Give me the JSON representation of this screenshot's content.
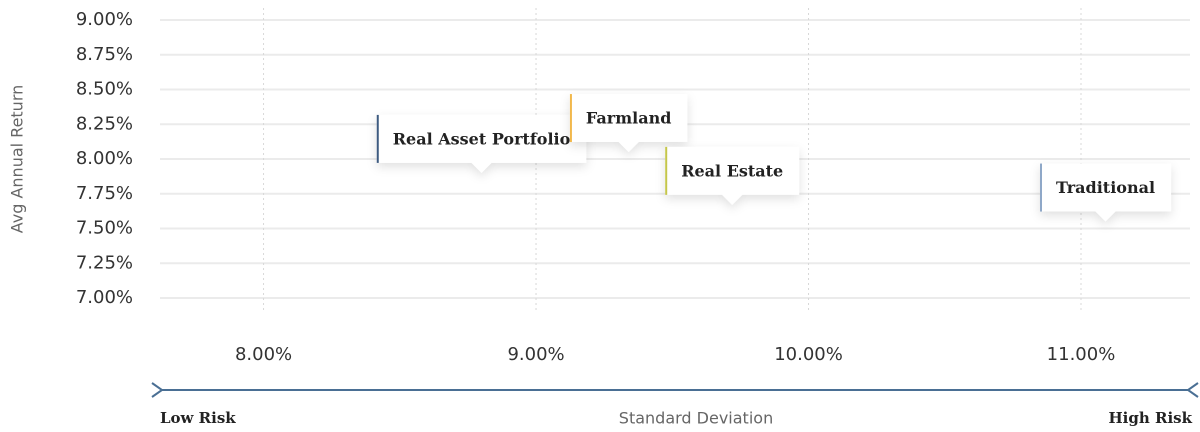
{
  "chart_data": {
    "type": "scatter",
    "x_label": "Standard Deviation",
    "y_label": "Avg Annual Return",
    "x_low_label": "Low Risk",
    "x_high_label": "High Risk",
    "series": [
      {
        "name": "Real Asset Portfolio",
        "color": "#3d5a80",
        "x": [
          8.8
        ],
        "values": [
          7.9
        ]
      },
      {
        "name": "Farmland",
        "color": "#f2b84b",
        "x": [
          9.34
        ],
        "values": [
          8.05
        ]
      },
      {
        "name": "Real Estate",
        "color": "#c5c64a",
        "x": [
          9.72
        ],
        "values": [
          7.67
        ]
      },
      {
        "name": "Traditional",
        "color": "#8fa8c8",
        "x": [
          11.09
        ],
        "values": [
          7.55
        ]
      }
    ],
    "xlim": [
      7.62,
      11.4
    ],
    "ylim": [
      7,
      9
    ],
    "xticks": [
      {
        "value": 8,
        "label": "8.00%"
      },
      {
        "value": 9,
        "label": "9.00%"
      },
      {
        "value": 10,
        "label": "10.00%"
      },
      {
        "value": 11,
        "label": "11.00%"
      }
    ],
    "yticks": [
      {
        "value": 7,
        "label": "7.00%"
      },
      {
        "value": 7.25,
        "label": "7.25%"
      },
      {
        "value": 7.5,
        "label": "7.50%"
      },
      {
        "value": 7.75,
        "label": "7.75%"
      },
      {
        "value": 8,
        "label": "8.00%"
      },
      {
        "value": 8.25,
        "label": "8.25%"
      },
      {
        "value": 8.5,
        "label": "8.50%"
      },
      {
        "value": 8.75,
        "label": "8.75%"
      },
      {
        "value": 9,
        "label": "9.00%"
      }
    ],
    "grid": true
  }
}
